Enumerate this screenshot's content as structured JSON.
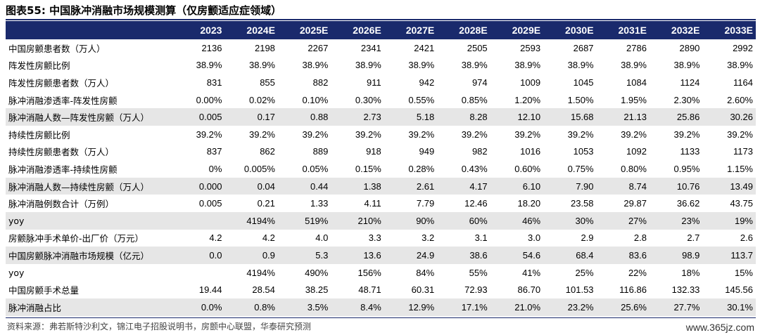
{
  "title": "图表55: 中国脉冲消融市场规模测算（仅房颤适应症领域）",
  "columns": [
    "",
    "2023",
    "2024E",
    "2025E",
    "2026E",
    "2027E",
    "2028E",
    "2029E",
    "2030E",
    "2031E",
    "2032E",
    "2033E"
  ],
  "rows": [
    {
      "label": "中国房颤患者数（万人）",
      "values": [
        "2136",
        "2198",
        "2267",
        "2341",
        "2421",
        "2505",
        "2593",
        "2687",
        "2786",
        "2890",
        "2992"
      ]
    },
    {
      "label": "阵发性房颤比例",
      "values": [
        "38.9%",
        "38.9%",
        "38.9%",
        "38.9%",
        "38.9%",
        "38.9%",
        "38.9%",
        "38.9%",
        "38.9%",
        "38.9%",
        "38.9%"
      ]
    },
    {
      "label": "阵发性房颤患者数（万人）",
      "values": [
        "831",
        "855",
        "882",
        "911",
        "942",
        "974",
        "1009",
        "1045",
        "1084",
        "1124",
        "1164"
      ]
    },
    {
      "label": "脉冲消融渗透率-阵发性房颤",
      "values": [
        "0.00%",
        "0.02%",
        "0.10%",
        "0.30%",
        "0.55%",
        "0.85%",
        "1.20%",
        "1.50%",
        "1.95%",
        "2.30%",
        "2.60%"
      ]
    },
    {
      "label": "脉冲消融人数—阵发性房颤（万人）",
      "values": [
        "0.005",
        "0.17",
        "0.88",
        "2.73",
        "5.18",
        "8.28",
        "12.10",
        "15.68",
        "21.13",
        "25.86",
        "30.26"
      ],
      "shade": true
    },
    {
      "label": "持续性房颤比例",
      "values": [
        "39.2%",
        "39.2%",
        "39.2%",
        "39.2%",
        "39.2%",
        "39.2%",
        "39.2%",
        "39.2%",
        "39.2%",
        "39.2%",
        "39.2%"
      ]
    },
    {
      "label": "持续性房颤患者数（万人）",
      "values": [
        "837",
        "862",
        "889",
        "918",
        "949",
        "982",
        "1016",
        "1053",
        "1092",
        "1133",
        "1173"
      ]
    },
    {
      "label": "脉冲消融渗透率-持续性房颤",
      "values": [
        "0%",
        "0.005%",
        "0.05%",
        "0.15%",
        "0.28%",
        "0.43%",
        "0.60%",
        "0.75%",
        "0.80%",
        "0.95%",
        "1.15%"
      ]
    },
    {
      "label": "脉冲消融人数—持续性房颤（万人）",
      "values": [
        "0.000",
        "0.04",
        "0.44",
        "1.38",
        "2.61",
        "4.17",
        "6.10",
        "7.90",
        "8.74",
        "10.76",
        "13.49"
      ],
      "shade": true
    },
    {
      "label": "脉冲消融例数合计（万例）",
      "values": [
        "0.005",
        "0.21",
        "1.33",
        "4.11",
        "7.79",
        "12.46",
        "18.20",
        "23.58",
        "29.87",
        "36.62",
        "43.75"
      ]
    },
    {
      "label": "yoy",
      "values": [
        "",
        "4194%",
        "519%",
        "210%",
        "90%",
        "60%",
        "46%",
        "30%",
        "27%",
        "23%",
        "19%"
      ],
      "shade": true
    },
    {
      "label": "房颤脉冲手术单价-出厂价（万元）",
      "values": [
        "4.2",
        "4.2",
        "4.0",
        "3.3",
        "3.2",
        "3.1",
        "3.0",
        "2.9",
        "2.8",
        "2.7",
        "2.6"
      ]
    },
    {
      "label": "中国房颤脉冲消融市场规模（亿元）",
      "values": [
        "0.0",
        "0.9",
        "5.3",
        "13.6",
        "24.9",
        "38.6",
        "54.6",
        "68.4",
        "83.6",
        "98.9",
        "113.7"
      ],
      "shade": true
    },
    {
      "label": "yoy",
      "values": [
        "",
        "4194%",
        "490%",
        "156%",
        "84%",
        "55%",
        "41%",
        "25%",
        "22%",
        "18%",
        "15%"
      ]
    },
    {
      "label": "中国房颤手术总量",
      "values": [
        "19.44",
        "28.54",
        "38.25",
        "48.71",
        "60.31",
        "72.93",
        "86.70",
        "101.53",
        "116.86",
        "132.33",
        "145.56"
      ]
    },
    {
      "label": "脉冲消融占比",
      "values": [
        "0.0%",
        "0.8%",
        "3.5%",
        "8.4%",
        "12.9%",
        "17.1%",
        "21.0%",
        "23.2%",
        "25.6%",
        "27.7%",
        "30.1%"
      ],
      "shade": true
    }
  ],
  "source": "资料来源：弗若斯特沙利文，锦江电子招股说明书，房颤中心联盟，华泰研究预测",
  "watermark": "www.365jz.com"
}
